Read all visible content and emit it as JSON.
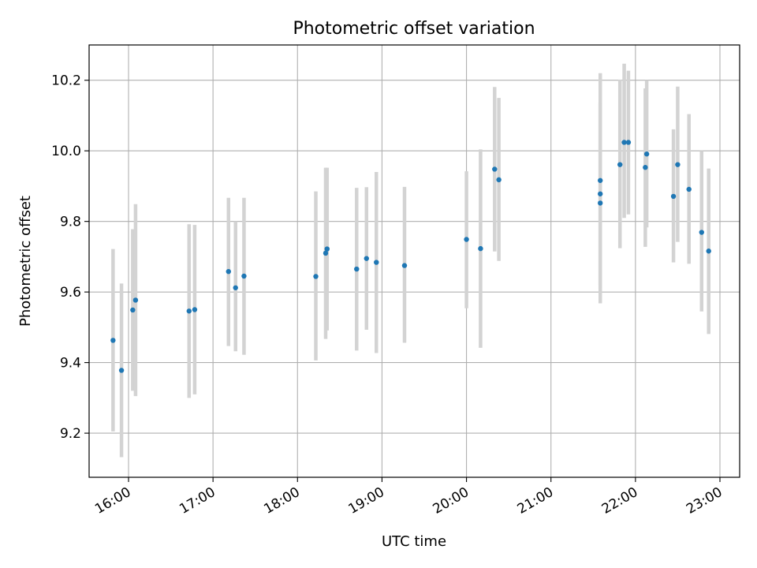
{
  "chart_data": {
    "type": "scatter",
    "title": "Photometric offset variation",
    "xlabel": "UTC time",
    "ylabel": "Photometric offset",
    "xlim": [
      "15:32",
      "23:14"
    ],
    "ylim": [
      9.075,
      10.3
    ],
    "x_ticks": [
      "16:00",
      "17:00",
      "18:00",
      "19:00",
      "20:00",
      "21:00",
      "22:00",
      "23:00"
    ],
    "y_ticks": [
      "9.2",
      "9.4",
      "9.6",
      "9.8",
      "10.0",
      "10.2"
    ],
    "grid": true,
    "legend": "none",
    "series": [
      {
        "marker_color": "#1f77b4",
        "errorbar_color": "#d3d3d3",
        "points": [
          {
            "x": "15:49",
            "y": 9.463,
            "ylow": 9.205,
            "yhigh": 9.722
          },
          {
            "x": "15:55",
            "y": 9.378,
            "ylow": 9.132,
            "yhigh": 9.624
          },
          {
            "x": "16:03",
            "y": 9.549,
            "ylow": 9.32,
            "yhigh": 9.778
          },
          {
            "x": "16:05",
            "y": 9.577,
            "ylow": 9.305,
            "yhigh": 9.849
          },
          {
            "x": "16:43",
            "y": 9.546,
            "ylow": 9.3,
            "yhigh": 9.792
          },
          {
            "x": "16:47",
            "y": 9.55,
            "ylow": 9.31,
            "yhigh": 9.79
          },
          {
            "x": "17:11",
            "y": 9.658,
            "ylow": 9.447,
            "yhigh": 9.867
          },
          {
            "x": "17:16",
            "y": 9.612,
            "ylow": 9.432,
            "yhigh": 9.8
          },
          {
            "x": "17:22",
            "y": 9.645,
            "ylow": 9.422,
            "yhigh": 9.867
          },
          {
            "x": "18:13",
            "y": 9.644,
            "ylow": 9.406,
            "yhigh": 9.885
          },
          {
            "x": "18:20",
            "y": 9.71,
            "ylow": 9.467,
            "yhigh": 9.952
          },
          {
            "x": "18:21",
            "y": 9.722,
            "ylow": 9.491,
            "yhigh": 9.952
          },
          {
            "x": "18:42",
            "y": 9.665,
            "ylow": 9.434,
            "yhigh": 9.895
          },
          {
            "x": "18:49",
            "y": 9.695,
            "ylow": 9.493,
            "yhigh": 9.897
          },
          {
            "x": "18:56",
            "y": 9.684,
            "ylow": 9.427,
            "yhigh": 9.94
          },
          {
            "x": "19:16",
            "y": 9.675,
            "ylow": 9.456,
            "yhigh": 9.898
          },
          {
            "x": "20:00",
            "y": 9.749,
            "ylow": 9.554,
            "yhigh": 9.942
          },
          {
            "x": "20:10",
            "y": 9.723,
            "ylow": 9.442,
            "yhigh": 10.004
          },
          {
            "x": "20:20",
            "y": 9.948,
            "ylow": 9.715,
            "yhigh": 10.181
          },
          {
            "x": "20:23",
            "y": 9.918,
            "ylow": 9.688,
            "yhigh": 10.15
          },
          {
            "x": "21:35",
            "y": 9.916,
            "ylow": 9.61,
            "yhigh": 10.22
          },
          {
            "x": "21:35",
            "y": 9.878,
            "ylow": 9.62,
            "yhigh": 10.136
          },
          {
            "x": "21:35",
            "y": 9.852,
            "ylow": 9.568,
            "yhigh": 10.136
          },
          {
            "x": "21:49",
            "y": 9.961,
            "ylow": 9.724,
            "yhigh": 10.202
          },
          {
            "x": "21:52",
            "y": 10.024,
            "ylow": 9.81,
            "yhigh": 10.247
          },
          {
            "x": "21:55",
            "y": 10.024,
            "ylow": 9.82,
            "yhigh": 10.227
          },
          {
            "x": "22:07",
            "y": 9.953,
            "ylow": 9.728,
            "yhigh": 10.177
          },
          {
            "x": "22:08",
            "y": 9.991,
            "ylow": 9.783,
            "yhigh": 10.2
          },
          {
            "x": "22:27",
            "y": 9.871,
            "ylow": 9.684,
            "yhigh": 10.061
          },
          {
            "x": "22:30",
            "y": 9.961,
            "ylow": 9.742,
            "yhigh": 10.182
          },
          {
            "x": "22:38",
            "y": 9.891,
            "ylow": 9.68,
            "yhigh": 10.104
          },
          {
            "x": "22:47",
            "y": 9.769,
            "ylow": 9.545,
            "yhigh": 10.0
          },
          {
            "x": "22:52",
            "y": 9.716,
            "ylow": 9.481,
            "yhigh": 9.95
          }
        ]
      }
    ]
  }
}
